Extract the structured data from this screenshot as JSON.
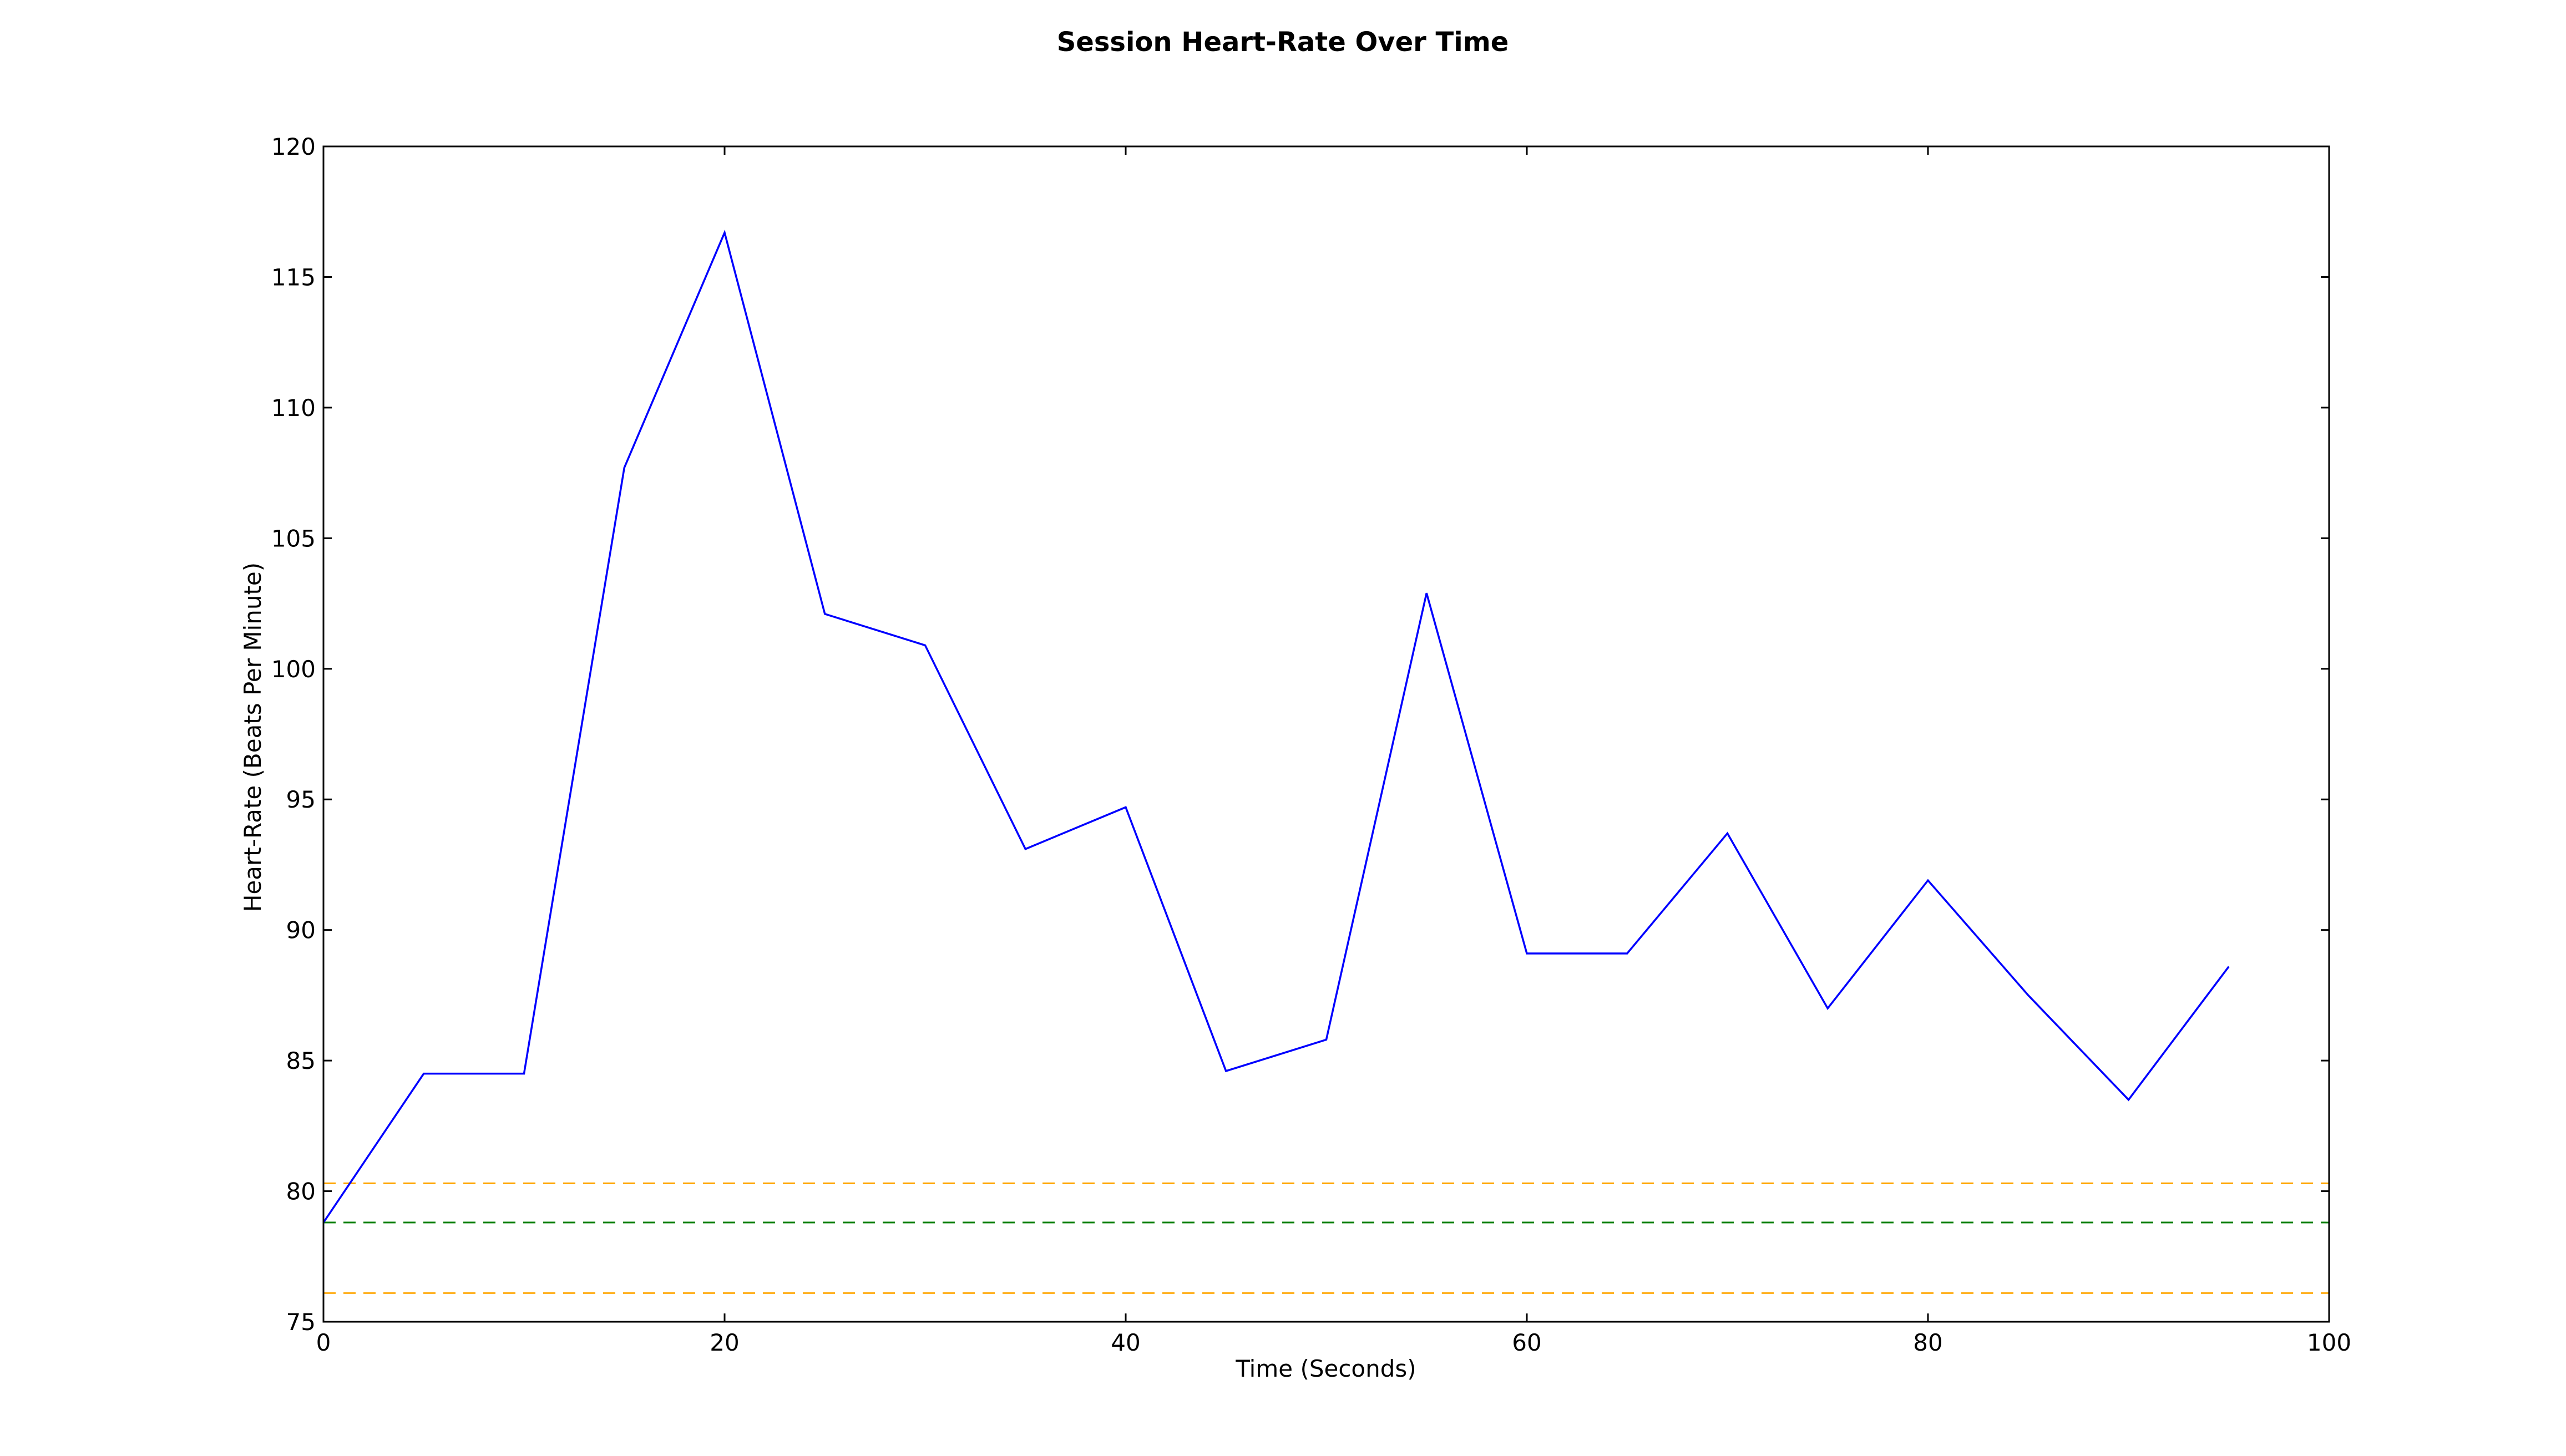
{
  "chart_data": {
    "type": "line",
    "title": "Session Heart-Rate Over Time",
    "xlabel": "Time (Seconds)",
    "ylabel": "Heart-Rate (Beats Per Minute)",
    "xlim": [
      0,
      100
    ],
    "ylim": [
      75,
      120
    ],
    "x_ticks": [
      0,
      20,
      40,
      60,
      80,
      100
    ],
    "y_ticks": [
      75,
      80,
      85,
      90,
      95,
      100,
      105,
      110,
      115,
      120
    ],
    "grid": false,
    "series": [
      {
        "color": "#0000ff",
        "style": "solid",
        "x": [
          0,
          5,
          10,
          15,
          20,
          25,
          30,
          35,
          40,
          45,
          50,
          55,
          60,
          65,
          70,
          75,
          80,
          85,
          90,
          95
        ],
        "y": [
          78.8,
          84.5,
          84.5,
          107.7,
          116.7,
          102.1,
          100.9,
          93.1,
          94.7,
          84.6,
          85.8,
          102.9,
          89.1,
          89.1,
          93.7,
          87.0,
          91.9,
          87.5,
          83.5,
          88.6
        ]
      }
    ],
    "reference_lines": [
      {
        "y": 80.3,
        "color": "#ffa500",
        "style": "dashed"
      },
      {
        "y": 78.8,
        "color": "#008000",
        "style": "dashed"
      },
      {
        "y": 76.1,
        "color": "#ffa500",
        "style": "dashed"
      }
    ]
  }
}
